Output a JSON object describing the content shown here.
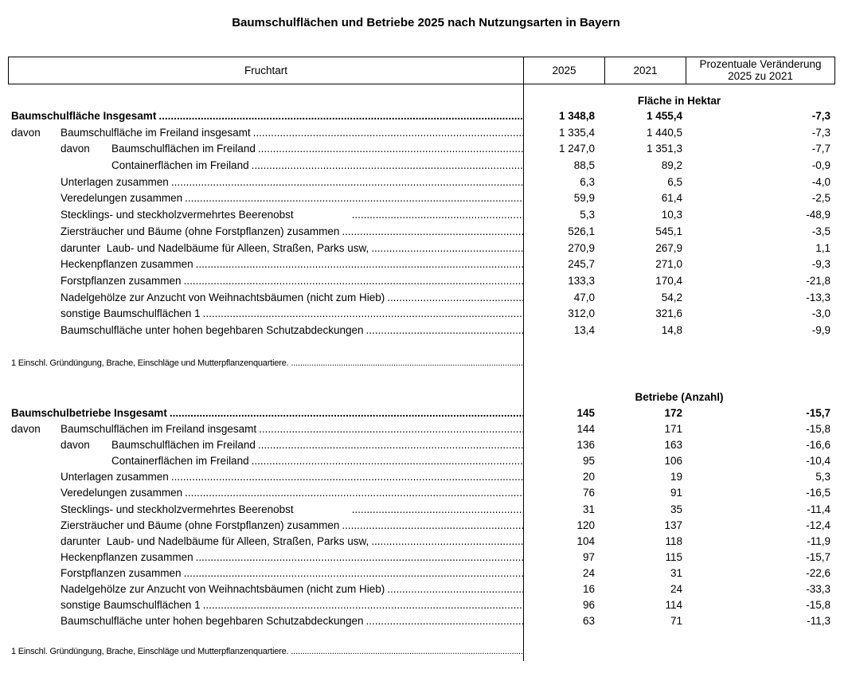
{
  "page_title": "Baumschulflächen und Betriebe 2025 nach Nutzungsarten in Bayern",
  "header": {
    "fruchtart": "Fruchtart",
    "y2025": "2025",
    "y2021": "2021",
    "change_line1": "Prozentuale Veränderung",
    "change_line2": "2025 zu 2021"
  },
  "sections": [
    {
      "unit_header": "Fläche in Hektar",
      "footnote": "1 Einschl. Gründüngung, Brache, Einschläge und Mutterpflanzenquartiere.",
      "rows": [
        {
          "label": "Baumschulfläche Insgesamt",
          "indent": 0,
          "bold": true,
          "v2025": "1 348,8",
          "v2021": "1 455,4",
          "change": "-7,3"
        },
        {
          "prefix": "davon",
          "prefix_indent": 0,
          "label": "Baumschulfläche im Freiland insgesamt",
          "indent": 1,
          "v2025": "1 335,4",
          "v2021": "1 440,5",
          "change": "-7,3"
        },
        {
          "prefix": "davon",
          "prefix_indent": 1,
          "label": "Baumschulflächen im Freiland",
          "indent": 2,
          "v2025": "1 247,0",
          "v2021": "1 351,3",
          "change": "-7,7"
        },
        {
          "label": "Containerflächen im Freiland",
          "indent": 2,
          "v2025": "88,5",
          "v2021": "89,2",
          "change": "-0,9"
        },
        {
          "label": "Unterlagen zusammen",
          "indent": 1,
          "v2025": "6,3",
          "v2021": "6,5",
          "change": "-4,0"
        },
        {
          "label": "Veredelungen zusammen",
          "indent": 1,
          "v2025": "59,9",
          "v2021": "61,4",
          "change": "-2,5"
        },
        {
          "label": "Stecklings- und steckholzvermehrtes Beerenobst",
          "indent": 1,
          "gap": true,
          "v2025": "5,3",
          "v2021": "10,3",
          "change": "-48,9"
        },
        {
          "label": "Ziersträucher und Bäume (ohne Forstpflanzen) zusammen",
          "indent": 1,
          "v2025": "526,1",
          "v2021": "545,1",
          "change": "-3,5"
        },
        {
          "label": "darunter  Laub- und Nadelbäume für Alleen, Straßen, Parks usw,",
          "indent": 1,
          "v2025": "270,9",
          "v2021": "267,9",
          "change": "1,1"
        },
        {
          "label": "Heckenpflanzen zusammen",
          "indent": 1,
          "v2025": "245,7",
          "v2021": "271,0",
          "change": "-9,3"
        },
        {
          "label": "Forstpflanzen zusammen",
          "indent": 1,
          "v2025": "133,3",
          "v2021": "170,4",
          "change": "-21,8"
        },
        {
          "label": "Nadelgehölze zur Anzucht von Weihnachtsbäumen (nicht zum Hieb)",
          "indent": 1,
          "v2025": "47,0",
          "v2021": "54,2",
          "change": "-13,3"
        },
        {
          "label": "sonstige Baumschulflächen 1",
          "indent": 1,
          "v2025": "312,0",
          "v2021": "321,6",
          "change": "-3,0"
        },
        {
          "label": "Baumschulfläche unter hohen begehbaren Schutzabdeckungen",
          "indent": 1,
          "v2025": "13,4",
          "v2021": "14,8",
          "change": "-9,9"
        }
      ]
    },
    {
      "unit_header": "Betriebe (Anzahl)",
      "footnote": "1 Einschl. Gründüngung, Brache, Einschläge und Mutterpflanzenquartiere.",
      "rows": [
        {
          "label": "Baumschulbetriebe Insgesamt",
          "indent": 0,
          "bold": true,
          "v2025": "145",
          "v2021": "172",
          "change": "-15,7"
        },
        {
          "prefix": "davon",
          "prefix_indent": 0,
          "label": "Baumschulflächen im Freiland insgesamt",
          "indent": 1,
          "v2025": "144",
          "v2021": "171",
          "change": "-15,8"
        },
        {
          "prefix": "davon",
          "prefix_indent": 1,
          "label": "Baumschulflächen im Freiland",
          "indent": 2,
          "v2025": "136",
          "v2021": "163",
          "change": "-16,6"
        },
        {
          "label": "Containerflächen im Freiland",
          "indent": 2,
          "v2025": "95",
          "v2021": "106",
          "change": "-10,4"
        },
        {
          "label": "Unterlagen zusammen",
          "indent": 1,
          "v2025": "20",
          "v2021": "19",
          "change": "5,3"
        },
        {
          "label": "Veredelungen zusammen",
          "indent": 1,
          "v2025": "76",
          "v2021": "91",
          "change": "-16,5"
        },
        {
          "label": "Stecklings- und steckholzvermehrtes Beerenobst",
          "indent": 1,
          "gap": true,
          "v2025": "31",
          "v2021": "35",
          "change": "-11,4"
        },
        {
          "label": "Ziersträucher und Bäume (ohne Forstpflanzen) zusammen",
          "indent": 1,
          "v2025": "120",
          "v2021": "137",
          "change": "-12,4"
        },
        {
          "label": "darunter  Laub- und Nadelbäume für Alleen, Straßen, Parks usw,",
          "indent": 1,
          "v2025": "104",
          "v2021": "118",
          "change": "-11,9"
        },
        {
          "label": "Heckenpflanzen zusammen",
          "indent": 1,
          "v2025": "97",
          "v2021": "115",
          "change": "-15,7"
        },
        {
          "label": "Forstpflanzen zusammen",
          "indent": 1,
          "v2025": "24",
          "v2021": "31",
          "change": "-22,6"
        },
        {
          "label": "Nadelgehölze zur Anzucht von Weihnachtsbäumen (nicht zum Hieb)",
          "indent": 1,
          "v2025": "16",
          "v2021": "24",
          "change": "-33,3"
        },
        {
          "label": "sonstige Baumschulflächen 1",
          "indent": 1,
          "v2025": "96",
          "v2021": "114",
          "change": "-15,8"
        },
        {
          "label": "Baumschulfläche unter hohen begehbaren Schutzabdeckungen",
          "indent": 1,
          "v2025": "63",
          "v2021": "71",
          "change": "-11,3"
        }
      ]
    }
  ]
}
